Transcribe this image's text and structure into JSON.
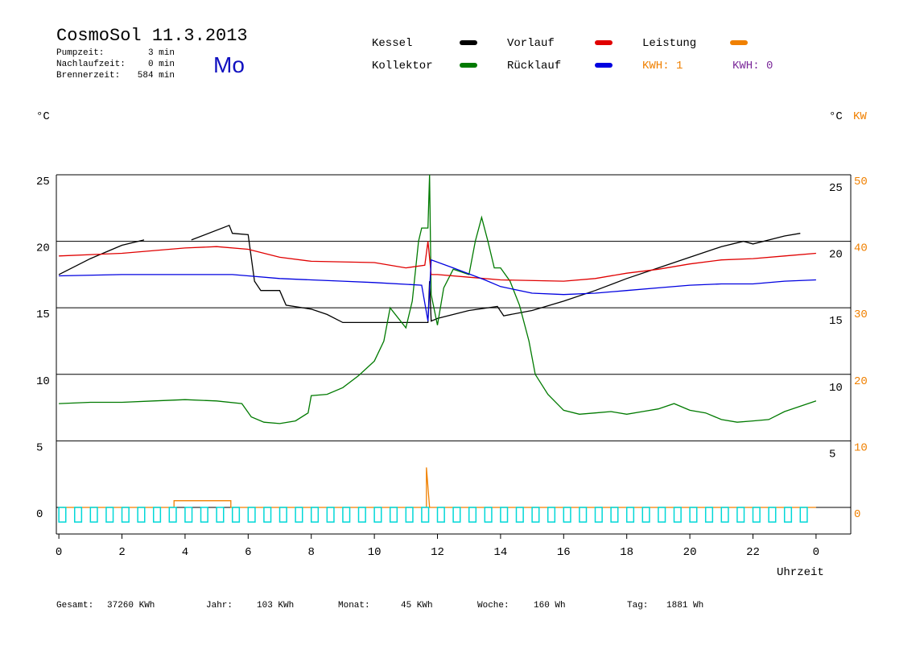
{
  "chart_data": {
    "type": "line",
    "title": "CosmoSol 11.3.2013",
    "info": [
      [
        "Pumpzeit:",
        "3 min"
      ],
      [
        "Nachlaufzeit:",
        "0 min"
      ],
      [
        "Brennerzeit:",
        "584 min"
      ]
    ],
    "weekday": "Mo",
    "kwh_labels": [
      "KWH: 1",
      "KWH: 0"
    ],
    "y_label": "°C",
    "y_label_right": "°C",
    "y2_label": "KW",
    "x_label": "Uhrzeit",
    "footer": [
      [
        "Gesamt:",
        "37260 KWh"
      ],
      [
        "Jahr:",
        "103 KWh"
      ],
      [
        "Monat:",
        "45 KWh"
      ],
      [
        "Woche:",
        "160 Wh"
      ],
      [
        "Tag:",
        "1881 Wh"
      ]
    ],
    "xlim": [
      -0.08,
      25.1
    ],
    "xticks": [
      0,
      2,
      4,
      6,
      8,
      10,
      12,
      14,
      16,
      18,
      20,
      22,
      {
        "value": 24,
        "label": "0"
      }
    ],
    "ylim": [
      -2,
      25
    ],
    "yticks": [
      0,
      5,
      10,
      15,
      20,
      25
    ],
    "yticks_right": [
      5,
      10,
      15,
      20,
      25
    ],
    "y2lim": [
      -4,
      50
    ],
    "y2ticks": [
      0,
      10,
      20,
      30,
      40,
      50
    ],
    "grid": true,
    "series": [
      {
        "name": "Kessel",
        "color": "#000000",
        "x": [
          0,
          1,
          2,
          2.7,
          2.8,
          4.2,
          5.4,
          5.5,
          6.0,
          6.2,
          6.4,
          7.0,
          7.2,
          8.0,
          8.5,
          9.0,
          10,
          11.7,
          11.75,
          11.8,
          12,
          13,
          13.9,
          14.1,
          15,
          16,
          17,
          18,
          19,
          20,
          21,
          21.7,
          22,
          23,
          23.5
        ],
        "values": [
          17.5,
          18.7,
          19.7,
          20.1,
          null,
          20.1,
          21.2,
          20.6,
          20.5,
          17,
          16.3,
          16.3,
          15.2,
          14.9,
          14.5,
          13.9,
          13.9,
          13.9,
          17,
          14,
          14.2,
          14.8,
          15.1,
          14.4,
          14.8,
          15.5,
          16.3,
          17.2,
          18,
          18.8,
          19.6,
          20,
          19.8,
          20.4,
          20.6
        ]
      },
      {
        "name": "Kollektor",
        "color": "#007a00",
        "x": [
          0,
          1,
          2,
          3,
          4,
          5,
          5.8,
          6.1,
          6.5,
          7,
          7.5,
          7.9,
          8,
          8.5,
          9,
          9.5,
          10,
          10.3,
          10.5,
          11,
          11.2,
          11.4,
          11.5,
          11.7,
          11.75,
          11.8,
          12,
          12.2,
          12.5,
          13,
          13.2,
          13.4,
          13.6,
          13.8,
          14,
          14.3,
          14.6,
          14.9,
          15.1,
          15.5,
          16,
          16.5,
          17,
          17.5,
          18,
          18.5,
          19,
          19.5,
          20,
          20.5,
          21,
          21.5,
          22,
          22.5,
          23,
          23.5,
          24
        ],
        "values": [
          7.8,
          7.9,
          7.9,
          8.0,
          8.1,
          8.0,
          7.8,
          6.8,
          6.4,
          6.3,
          6.5,
          7.1,
          8.4,
          8.5,
          9.0,
          9.9,
          11.0,
          12.5,
          15.0,
          13.5,
          15.5,
          20,
          21,
          21,
          25,
          16,
          13.7,
          16.5,
          17.9,
          17.5,
          20,
          21.8,
          20,
          18,
          18,
          17,
          15.2,
          12.5,
          10,
          8.5,
          7.3,
          7.0,
          7.1,
          7.2,
          7.0,
          7.2,
          7.4,
          7.8,
          7.3,
          7.1,
          6.6,
          6.4,
          6.5,
          6.6,
          7.2,
          7.6,
          8.0
        ]
      },
      {
        "name": "Vorlauf",
        "color": "#e00000",
        "x": [
          0,
          2,
          4,
          5,
          6,
          7,
          8,
          10,
          11,
          11.6,
          11.7,
          11.8,
          12,
          13,
          14,
          16,
          17,
          18,
          19,
          20,
          21,
          22,
          23,
          24
        ],
        "values": [
          18.9,
          19.1,
          19.5,
          19.6,
          19.4,
          18.8,
          18.5,
          18.4,
          18.0,
          18.2,
          20,
          17.5,
          17.5,
          17.3,
          17.1,
          17.0,
          17.2,
          17.6,
          17.9,
          18.3,
          18.6,
          18.7,
          18.9,
          19.1
        ]
      },
      {
        "name": "Rücklauf",
        "color": "#0000e0",
        "x": [
          0,
          2,
          5.5,
          6,
          7,
          8,
          9,
          10,
          11.5,
          11.7,
          11.8,
          12.5,
          13.5,
          14,
          15,
          16,
          17,
          18,
          19,
          20,
          21,
          22,
          23,
          24
        ],
        "values": [
          17.4,
          17.5,
          17.5,
          17.4,
          17.2,
          17.1,
          17.0,
          16.9,
          16.7,
          14.0,
          18.6,
          18.0,
          17.1,
          16.6,
          16.1,
          16.0,
          16.1,
          16.3,
          16.5,
          16.7,
          16.8,
          16.8,
          17.0,
          17.1
        ]
      },
      {
        "name": "Leistung",
        "color": "#f08000",
        "axis": "y2",
        "x": [
          0,
          3.65,
          3.65,
          5.45,
          5.45,
          11.65,
          11.65,
          11.75,
          24
        ],
        "values": [
          0,
          0,
          1,
          1,
          0,
          0,
          6,
          0,
          0
        ]
      },
      {
        "color": "#00d8d8",
        "style": "pulse",
        "width": 0.22,
        "x": [
          0,
          0.5,
          1,
          1.5,
          2,
          2.5,
          3,
          3.5,
          4,
          4.5,
          5,
          5.5,
          6,
          6.5,
          7,
          7.5,
          8,
          8.5,
          9,
          9.5,
          10,
          10.5,
          11,
          11.5,
          12,
          12.5,
          13,
          13.5,
          14,
          14.5,
          15,
          15.5,
          16,
          16.5,
          17,
          17.5,
          18,
          18.5,
          19,
          19.5,
          20,
          20.5,
          21,
          21.5,
          22,
          22.5,
          23,
          23.5
        ],
        "values": [
          -1.1,
          -1.1,
          -1.1,
          -1.1,
          -1.1,
          -1.1,
          -1.1,
          -1.1,
          -1.1,
          -1.1,
          -1.1,
          -1.1,
          -1.1,
          -1.1,
          -1.1,
          -1.1,
          -1.1,
          -1.1,
          -1.1,
          -1.1,
          -1.1,
          -1.1,
          -1.1,
          -1.1,
          -1.1,
          -1.1,
          -1.1,
          -1.1,
          -1.1,
          -1.1,
          -1.1,
          -1.1,
          -1.1,
          -1.1,
          -1.1,
          -1.1,
          -1.1,
          -1.1,
          -1.1,
          -1.1,
          -1.1,
          -1.1,
          -1.1,
          -1.1,
          -1.1,
          -1.1,
          -1.1,
          -1.1
        ]
      }
    ]
  }
}
